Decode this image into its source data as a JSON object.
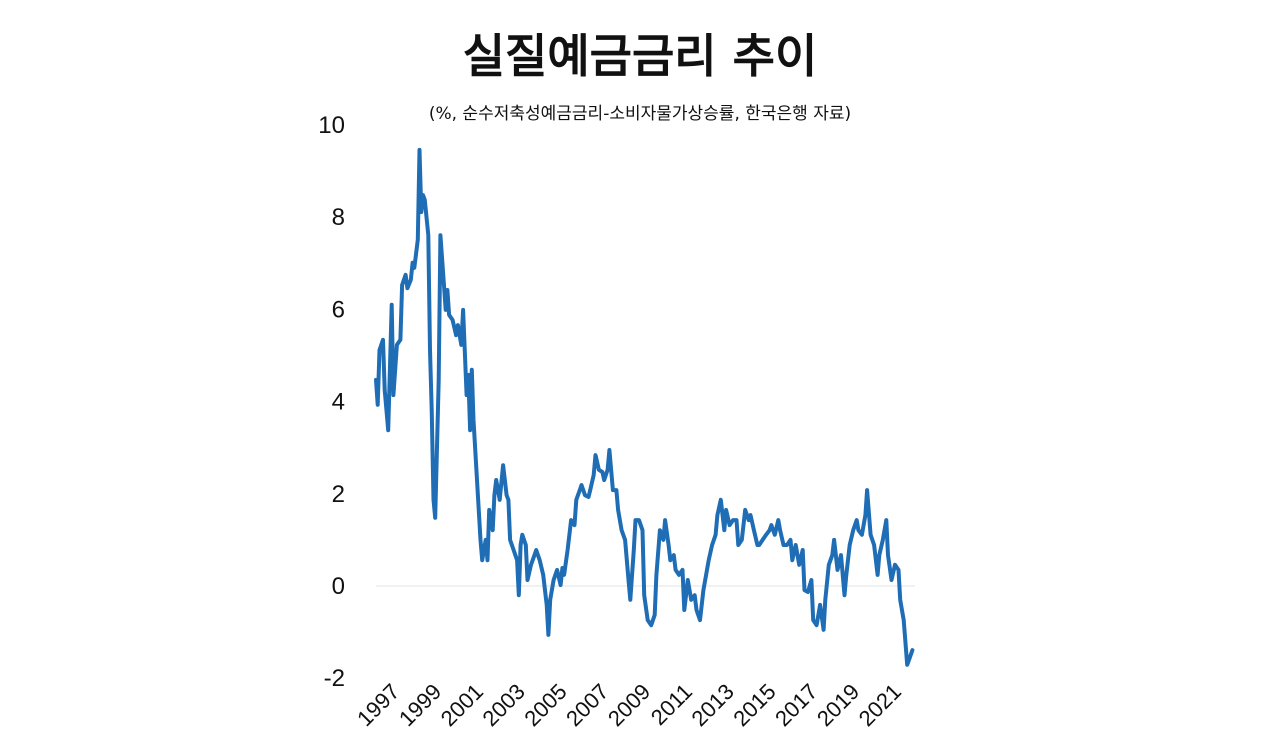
{
  "chart_data": {
    "type": "line",
    "title": "실질예금금리 추이",
    "subtitle": "(%, 순수저축성예금금리-소비자물가상승률,  한국은행 자료)",
    "xlabel": "",
    "ylabel": "",
    "ylim": [
      -2,
      10
    ],
    "yticks": [
      "10",
      "8",
      "6",
      "4",
      "2",
      "0",
      "-2"
    ],
    "ytick_values": [
      10,
      8,
      6,
      4,
      2,
      0,
      -2
    ],
    "xticks": [
      "1997",
      "1999",
      "2001",
      "2003",
      "2005",
      "2007",
      "2009",
      "2011",
      "2013",
      "2015",
      "2017",
      "2019",
      "2021"
    ],
    "grid": "zero line only",
    "line_color": "#1f6db5",
    "zero_line_color": "#e3e3e3",
    "series": [
      {
        "x": [
          "1996-01",
          "1996-02",
          "1996-03",
          "1996-05",
          "1996-06",
          "1996-08",
          "1996-10",
          "1996-11",
          "1997-01",
          "1997-03",
          "1997-04",
          "1997-06",
          "1997-07",
          "1997-09",
          "1997-10",
          "1997-11",
          "1998-01",
          "1998-02",
          "1998-03",
          "1998-04",
          "1998-05",
          "1998-07",
          "1998-08",
          "1998-09",
          "1998-10",
          "1998-11",
          "1999-01",
          "1999-02",
          "1999-03",
          "1999-05",
          "1999-06",
          "1999-07",
          "1999-09",
          "1999-11",
          "1999-12",
          "2000-02",
          "2000-03",
          "2000-05",
          "2000-06",
          "2000-07",
          "2000-08",
          "2000-09",
          "2000-11",
          "2001-01",
          "2001-02",
          "2001-04",
          "2001-05",
          "2001-06",
          "2001-08",
          "2001-09",
          "2001-10",
          "2001-12",
          "2002-02",
          "2002-04",
          "2002-05",
          "2002-06",
          "2002-08",
          "2002-10",
          "2002-11",
          "2002-12",
          "2003-01",
          "2003-03",
          "2003-04",
          "2003-06",
          "2003-08",
          "2003-09",
          "2003-11",
          "2004-01",
          "2004-03",
          "2004-04",
          "2004-05",
          "2004-07",
          "2004-09",
          "2004-11",
          "2004-12",
          "2005-01",
          "2005-03",
          "2005-05",
          "2005-07",
          "2005-08",
          "2005-10",
          "2005-11",
          "2006-01",
          "2006-03",
          "2006-04",
          "2006-06",
          "2006-07",
          "2006-09",
          "2006-11",
          "2006-12",
          "2007-02",
          "2007-03",
          "2007-05",
          "2007-07",
          "2007-08",
          "2007-10",
          "2007-12",
          "2008-02",
          "2008-03",
          "2008-05",
          "2008-06",
          "2008-08",
          "2008-10",
          "2008-11",
          "2009-01",
          "2009-03",
          "2009-05",
          "2009-06",
          "2009-08",
          "2009-10",
          "2009-11",
          "2010-01",
          "2010-02",
          "2010-04",
          "2010-05",
          "2010-07",
          "2010-09",
          "2010-10",
          "2010-12",
          "2011-02",
          "2011-04",
          "2011-05",
          "2011-07",
          "2011-09",
          "2011-10",
          "2011-12",
          "2012-02",
          "2012-04",
          "2012-05",
          "2012-07",
          "2012-09",
          "2012-10",
          "2012-12",
          "2013-02",
          "2013-04",
          "2013-05",
          "2013-07",
          "2013-09",
          "2013-11",
          "2013-12",
          "2014-02",
          "2014-04",
          "2014-05",
          "2014-07",
          "2014-09",
          "2014-11",
          "2014-12",
          "2015-02",
          "2015-04",
          "2015-05",
          "2015-07",
          "2015-09",
          "2015-11",
          "2015-12",
          "2016-02",
          "2016-04",
          "2016-06",
          "2016-07",
          "2016-09",
          "2016-11",
          "2016-12",
          "2017-02",
          "2017-04",
          "2017-06",
          "2017-07",
          "2017-09",
          "2017-11",
          "2017-12",
          "2018-02",
          "2018-04",
          "2018-06",
          "2018-07",
          "2018-09",
          "2018-11",
          "2019-01",
          "2019-02",
          "2019-04",
          "2019-06",
          "2019-07",
          "2019-09",
          "2019-11",
          "2020-01",
          "2020-02",
          "2020-04",
          "2020-06",
          "2020-07",
          "2020-09",
          "2020-11",
          "2021-01",
          "2021-02",
          "2021-04",
          "2021-06",
          "2021-08",
          "2021-09"
        ],
        "values": [
          4.47,
          3.93,
          5.12,
          5.34,
          4.25,
          3.38,
          6.1,
          4.14,
          5.23,
          5.34,
          6.53,
          6.75,
          6.46,
          6.64,
          7.01,
          6.9,
          7.51,
          9.46,
          8.11,
          8.48,
          8.37,
          7.61,
          5.12,
          3.82,
          1.87,
          1.48,
          4.47,
          7.61,
          7.07,
          5.99,
          6.42,
          5.88,
          5.77,
          5.44,
          5.66,
          5.23,
          5.99,
          4.14,
          4.58,
          3.38,
          4.69,
          3.6,
          2.3,
          1.0,
          0.56,
          1.0,
          0.56,
          1.65,
          1.21,
          1.97,
          2.3,
          1.87,
          2.62,
          1.97,
          1.87,
          1.0,
          0.78,
          0.56,
          -0.2,
          0.89,
          1.11,
          0.89,
          0.13,
          0.46,
          0.67,
          0.78,
          0.56,
          0.24,
          -0.41,
          -1.06,
          -0.3,
          0.13,
          0.35,
          0.02,
          0.39,
          0.24,
          0.78,
          1.43,
          1.32,
          1.87,
          2.08,
          2.19,
          1.97,
          1.93,
          2.08,
          2.41,
          2.84,
          2.52,
          2.47,
          2.3,
          2.52,
          2.95,
          2.08,
          2.08,
          1.65,
          1.21,
          1.0,
          0.13,
          -0.3,
          0.78,
          1.43,
          1.43,
          1.21,
          -0.2,
          -0.74,
          -0.85,
          -0.63,
          0.24,
          1.21,
          1.0,
          1.43,
          0.89,
          0.56,
          0.67,
          0.35,
          0.24,
          0.35,
          -0.52,
          0.13,
          -0.3,
          -0.2,
          -0.52,
          -0.74,
          -0.09,
          0.13,
          0.56,
          0.89,
          1.11,
          1.54,
          1.87,
          1.21,
          1.65,
          1.32,
          1.43,
          1.43,
          0.89,
          1.0,
          1.65,
          1.43,
          1.54,
          1.21,
          0.89,
          0.89,
          1.0,
          1.11,
          1.21,
          1.32,
          1.11,
          1.43,
          1.21,
          0.89,
          0.89,
          1.0,
          0.56,
          0.89,
          0.46,
          0.78,
          -0.09,
          -0.13,
          0.13,
          -0.74,
          -0.85,
          -0.41,
          -0.95,
          -0.3,
          0.46,
          0.67,
          1.0,
          0.35,
          0.67,
          -0.2,
          0.24,
          0.89,
          1.21,
          1.43,
          1.21,
          1.11,
          1.54,
          2.08,
          1.11,
          0.89,
          0.24,
          0.67,
          1.0,
          1.43,
          0.67,
          0.13,
          0.46,
          0.35,
          -0.3,
          -0.74,
          -1.71,
          -1.5,
          -1.39
        ]
      }
    ]
  }
}
